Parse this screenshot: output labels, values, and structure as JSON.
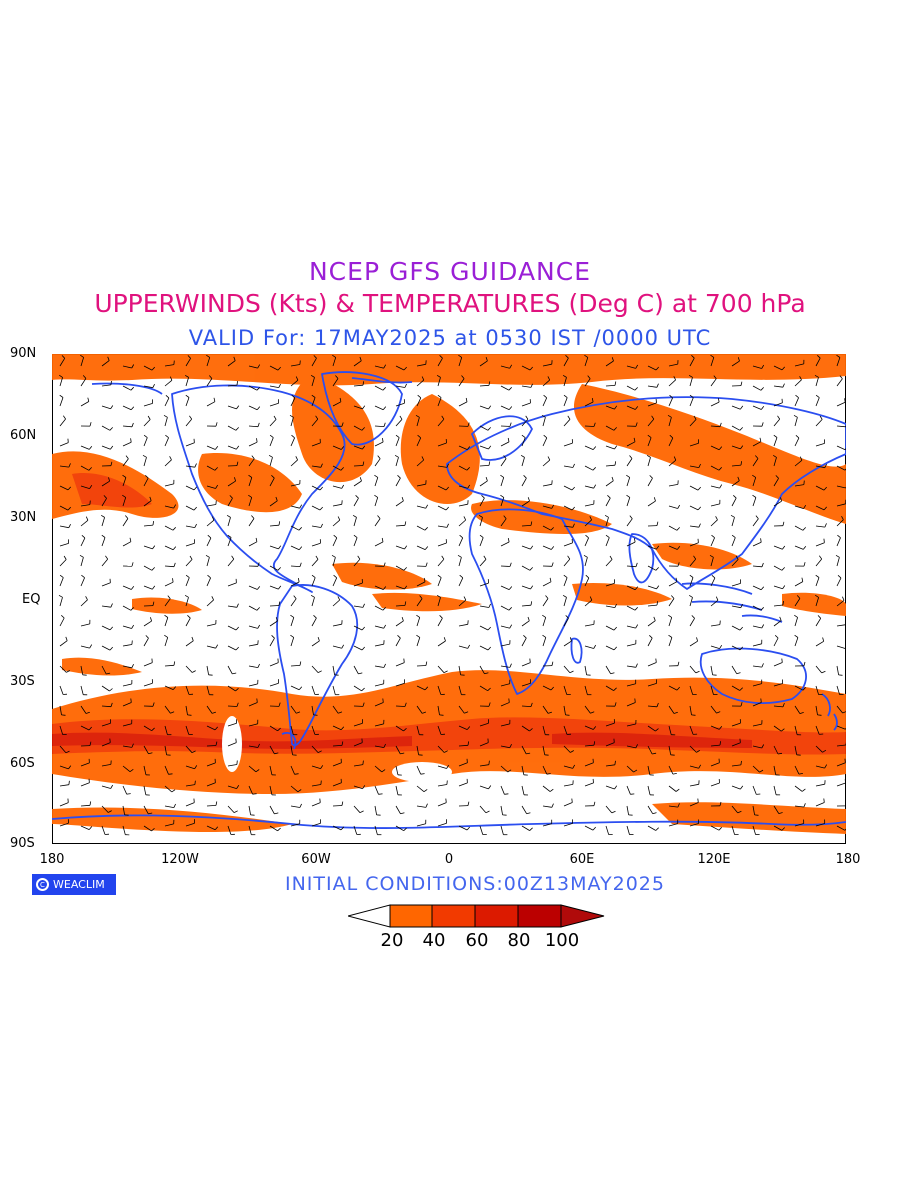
{
  "title": {
    "line1": "NCEP GFS GUIDANCE",
    "line2": "UPPERWINDS (Kts) & TEMPERATURES (Deg C) at 700 hPa",
    "line3": "VALID For: 17MAY2025 at 0530 IST /0000 UTC"
  },
  "initial_conditions": "INITIAL CONDITIONS:00Z13MAY2025",
  "logo": {
    "text": "WEACLIM",
    "mark": "C"
  },
  "axes": {
    "lat_labels": [
      "90N",
      "60N",
      "30N",
      "EQ",
      "30S",
      "60S",
      "90S"
    ],
    "lon_labels": [
      "180",
      "120W",
      "60W",
      "0",
      "60E",
      "120E",
      "180"
    ]
  },
  "colorbar": {
    "labels": [
      "20",
      "40",
      "60",
      "80",
      "100"
    ],
    "colors": [
      "#ffffff",
      "#ff6600",
      "#f23a00",
      "#dc1a00",
      "#bb0000",
      "#b00a0a"
    ]
  },
  "colors": {
    "coastline": "#2b4ef0",
    "wind_shade_20_40": "#ff6600",
    "wind_shade_40_60": "#f23a00",
    "wind_shade_60_80": "#dc1a00"
  }
}
